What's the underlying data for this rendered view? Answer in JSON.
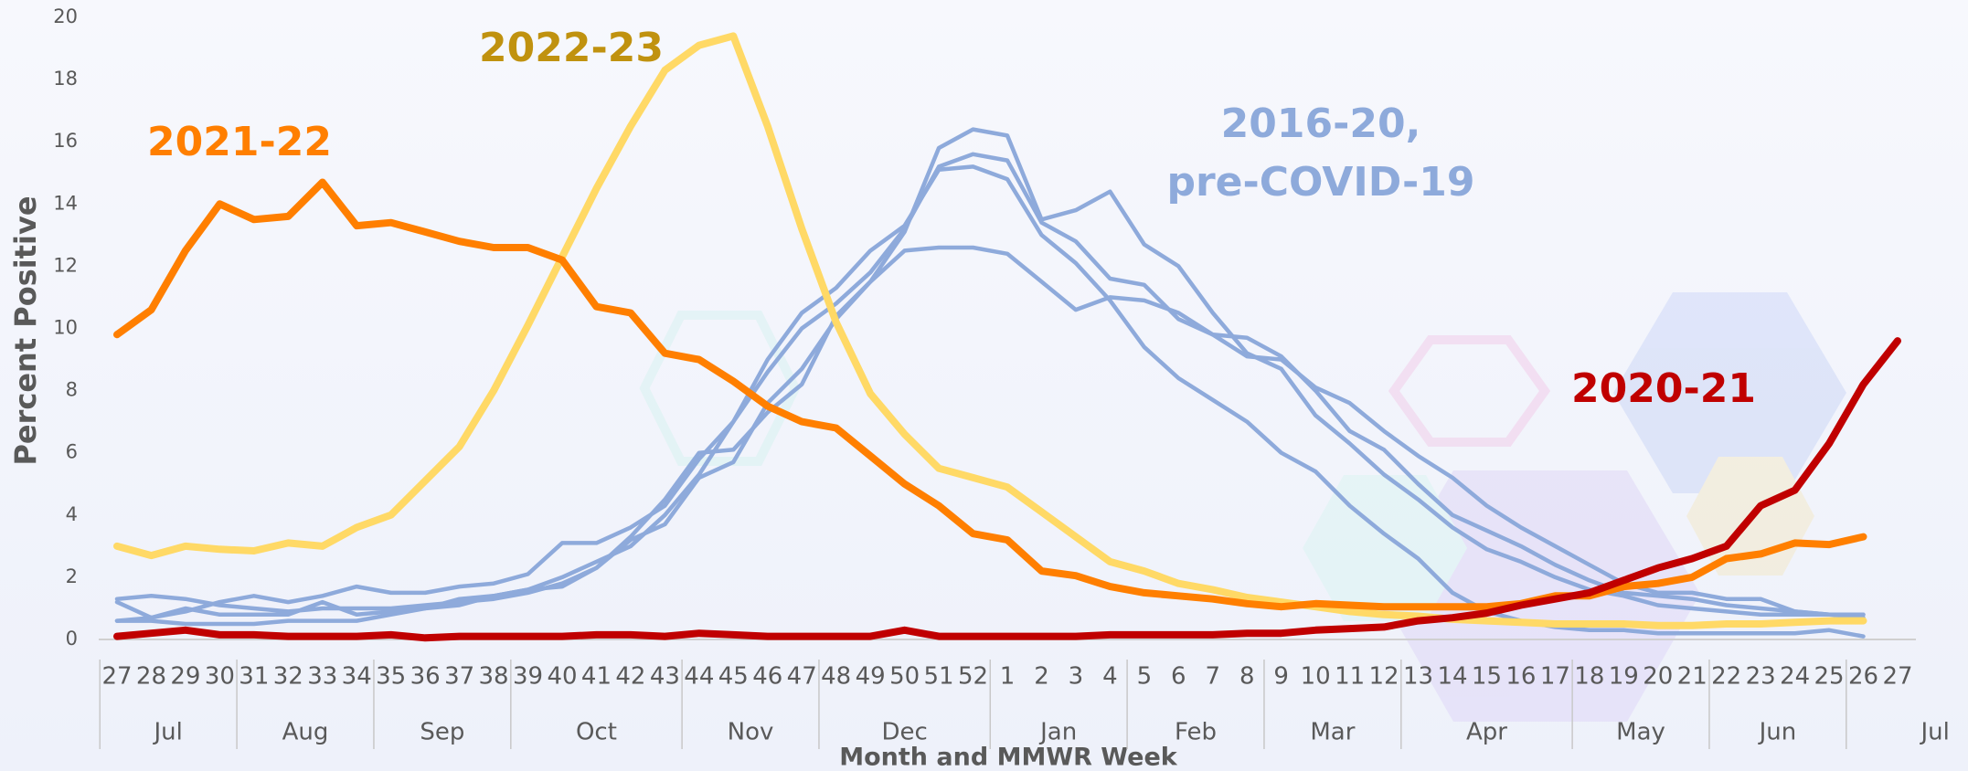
{
  "chart_data": {
    "type": "line",
    "x_label": "Month and MMWR Week",
    "y_label": "Percent Positive",
    "categories": [
      "27",
      "28",
      "29",
      "30",
      "31",
      "32",
      "33",
      "34",
      "35",
      "36",
      "37",
      "38",
      "39",
      "40",
      "41",
      "42",
      "43",
      "44",
      "45",
      "46",
      "47",
      "48",
      "49",
      "50",
      "51",
      "52",
      "1",
      "2",
      "3",
      "4",
      "5",
      "6",
      "7",
      "8",
      "9",
      "10",
      "11",
      "12",
      "13",
      "14",
      "15",
      "16",
      "17",
      "18",
      "19",
      "20",
      "21",
      "22",
      "23",
      "24",
      "25",
      "26",
      "27"
    ],
    "months": [
      "Jul",
      "Aug",
      "Sep",
      "Oct",
      "Nov",
      "Dec",
      "Jan",
      "Feb",
      "Mar",
      "Apr",
      "May",
      "Jun",
      "Jul"
    ],
    "ylim": [
      0,
      20
    ],
    "yticks": [
      0,
      2,
      4,
      6,
      8,
      10,
      12,
      14,
      16,
      18,
      20
    ],
    "grid": false,
    "annotations": [
      {
        "text": [
          "2016-20,",
          "pre-COVID-19"
        ],
        "color": "#8eaadb"
      }
    ],
    "series": [
      {
        "color": "#8eaadb",
        "values": [
          1.3,
          1.4,
          1.3,
          1.1,
          1.0,
          0.9,
          1.0,
          1.0,
          1.0,
          1.1,
          1.2,
          1.3,
          1.5,
          1.8,
          2.3,
          3.2,
          3.7,
          5.2,
          5.7,
          7.6,
          8.7,
          10.3,
          11.5,
          13.1,
          15.8,
          16.4,
          16.2,
          13.5,
          13.8,
          14.4,
          12.7,
          12.0,
          10.5,
          9.2,
          8.7,
          7.2,
          6.3,
          5.3,
          4.5,
          3.6,
          2.9,
          2.5,
          2.0,
          1.6,
          1.4,
          1.1,
          1.0,
          0.9,
          0.8,
          0.8,
          0.8,
          0.7,
          null
        ]
      },
      {
        "color": "#8eaadb",
        "values": [
          0.6,
          0.7,
          0.9,
          1.2,
          1.4,
          1.2,
          1.4,
          1.7,
          1.5,
          1.5,
          1.7,
          1.8,
          2.1,
          3.1,
          3.1,
          3.6,
          4.3,
          5.8,
          7.0,
          8.6,
          10.0,
          10.8,
          11.8,
          13.2,
          15.2,
          15.6,
          15.4,
          13.4,
          12.8,
          11.6,
          11.4,
          10.3,
          9.8,
          9.1,
          9.0,
          8.1,
          7.6,
          6.7,
          5.9,
          5.2,
          4.3,
          3.6,
          3.0,
          2.4,
          1.8,
          1.5,
          1.5,
          1.3,
          1.3,
          0.9,
          0.8,
          0.8,
          null
        ]
      },
      {
        "color": "#8eaadb",
        "values": [
          0.6,
          0.6,
          0.5,
          0.5,
          0.5,
          0.6,
          0.6,
          0.6,
          0.8,
          1.0,
          1.1,
          1.4,
          1.6,
          2.0,
          2.5,
          3.0,
          4.0,
          5.3,
          7.0,
          9.0,
          10.5,
          11.3,
          12.5,
          13.3,
          15.1,
          15.2,
          14.8,
          13.0,
          12.1,
          10.9,
          9.4,
          8.4,
          7.7,
          7.0,
          6.0,
          5.4,
          4.3,
          3.4,
          2.6,
          1.5,
          0.9,
          0.6,
          0.4,
          0.3,
          0.3,
          0.2,
          0.2,
          0.2,
          0.2,
          0.2,
          0.3,
          0.1,
          null
        ]
      },
      {
        "color": "#8eaadb",
        "values": [
          1.2,
          0.7,
          1.0,
          0.8,
          0.8,
          0.8,
          1.2,
          0.8,
          0.9,
          1.0,
          1.3,
          1.4,
          1.6,
          1.7,
          2.3,
          3.3,
          4.5,
          6.0,
          6.1,
          7.3,
          8.2,
          10.4,
          11.5,
          12.5,
          12.6,
          12.6,
          12.4,
          11.5,
          10.6,
          11.0,
          10.9,
          10.5,
          9.8,
          9.7,
          9.1,
          8.0,
          6.7,
          6.1,
          5.0,
          4.0,
          3.5,
          3.0,
          2.4,
          1.9,
          1.5,
          1.4,
          1.3,
          1.1,
          1.0,
          0.9,
          0.8,
          0.8,
          null
        ]
      },
      {
        "name": "2022-23",
        "color": "#ffd966",
        "label_color": "#c0920f",
        "values": [
          3.0,
          2.7,
          3.0,
          2.9,
          2.85,
          3.1,
          3.0,
          3.6,
          4.0,
          5.1,
          6.2,
          8.0,
          10.1,
          12.3,
          14.5,
          16.5,
          18.3,
          19.1,
          19.4,
          16.5,
          13.2,
          10.2,
          7.9,
          6.6,
          5.5,
          5.2,
          4.9,
          4.1,
          3.3,
          2.5,
          2.2,
          1.8,
          1.6,
          1.35,
          1.2,
          1.05,
          0.9,
          0.8,
          0.75,
          0.65,
          0.6,
          0.55,
          0.5,
          0.5,
          0.5,
          0.45,
          0.45,
          0.5,
          0.5,
          0.55,
          0.6,
          0.6,
          null
        ]
      },
      {
        "name": "2021-22",
        "color": "#ff7f00",
        "label_color": "#ff7f00",
        "values": [
          9.8,
          10.6,
          12.5,
          14.0,
          13.5,
          13.6,
          14.7,
          13.3,
          13.4,
          13.1,
          12.8,
          12.6,
          12.6,
          12.2,
          10.7,
          10.5,
          9.2,
          9.0,
          8.3,
          7.5,
          7.0,
          6.8,
          5.9,
          5.0,
          4.3,
          3.4,
          3.2,
          2.2,
          2.05,
          1.7,
          1.5,
          1.4,
          1.3,
          1.15,
          1.05,
          1.15,
          1.1,
          1.05,
          1.05,
          1.05,
          1.05,
          1.15,
          1.4,
          1.4,
          1.7,
          1.8,
          2.0,
          2.6,
          2.75,
          3.1,
          3.05,
          3.3,
          null
        ]
      },
      {
        "name": "2020-21",
        "color": "#c00000",
        "label_color": "#c00000",
        "values": [
          0.1,
          0.2,
          0.3,
          0.15,
          0.15,
          0.1,
          0.1,
          0.1,
          0.15,
          0.05,
          0.1,
          0.1,
          0.1,
          0.1,
          0.15,
          0.15,
          0.1,
          0.2,
          0.15,
          0.1,
          0.1,
          0.1,
          0.1,
          0.3,
          0.1,
          0.1,
          0.1,
          0.1,
          0.1,
          0.15,
          0.15,
          0.15,
          0.15,
          0.2,
          0.2,
          0.3,
          0.35,
          0.4,
          0.6,
          0.7,
          0.85,
          1.1,
          1.3,
          1.5,
          1.9,
          2.3,
          2.6,
          3.0,
          4.3,
          4.8,
          6.3,
          8.2,
          9.6
        ]
      }
    ]
  }
}
